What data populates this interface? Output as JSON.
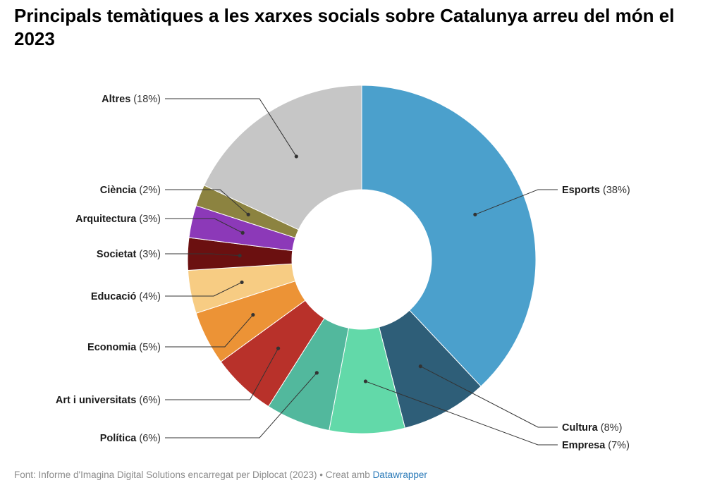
{
  "title": "Principals temàtiques a les xarxes socials sobre Catalunya arreu del món el 2023",
  "footer": {
    "source": "Font: Informe d'Imagina Digital Solutions encarregat per Diplocat (2023) • Creat amb ",
    "link": "Datawrapper"
  },
  "chart_data": {
    "type": "pie",
    "donut": true,
    "unit": "%",
    "slices": [
      {
        "label": "Esports",
        "value": 38,
        "display": "(38%)",
        "color": "#4ba0cc"
      },
      {
        "label": "Cultura",
        "value": 8,
        "display": "(8%)",
        "color": "#2e5e78"
      },
      {
        "label": "Empresa",
        "value": 7,
        "display": "(7%)",
        "color": "#62d9a9"
      },
      {
        "label": "Política",
        "value": 6,
        "display": "(6%)",
        "color": "#52b89d"
      },
      {
        "label": "Art i universitats",
        "value": 6,
        "display": "(6%)",
        "color": "#b8312a"
      },
      {
        "label": "Economia",
        "value": 5,
        "display": "(5%)",
        "color": "#ec9336"
      },
      {
        "label": "Educació",
        "value": 4,
        "display": "(4%)",
        "color": "#f7cc83"
      },
      {
        "label": "Societat",
        "value": 3,
        "display": "(3%)",
        "color": "#6b1010"
      },
      {
        "label": "Arquitectura",
        "value": 3,
        "display": "(3%)",
        "color": "#8c39b8"
      },
      {
        "label": "Ciència",
        "value": 2,
        "display": "(2%)",
        "color": "#8c8340"
      },
      {
        "label": "Altres",
        "value": 18,
        "display": "(18%)",
        "color": "#c6c6c6"
      }
    ]
  }
}
